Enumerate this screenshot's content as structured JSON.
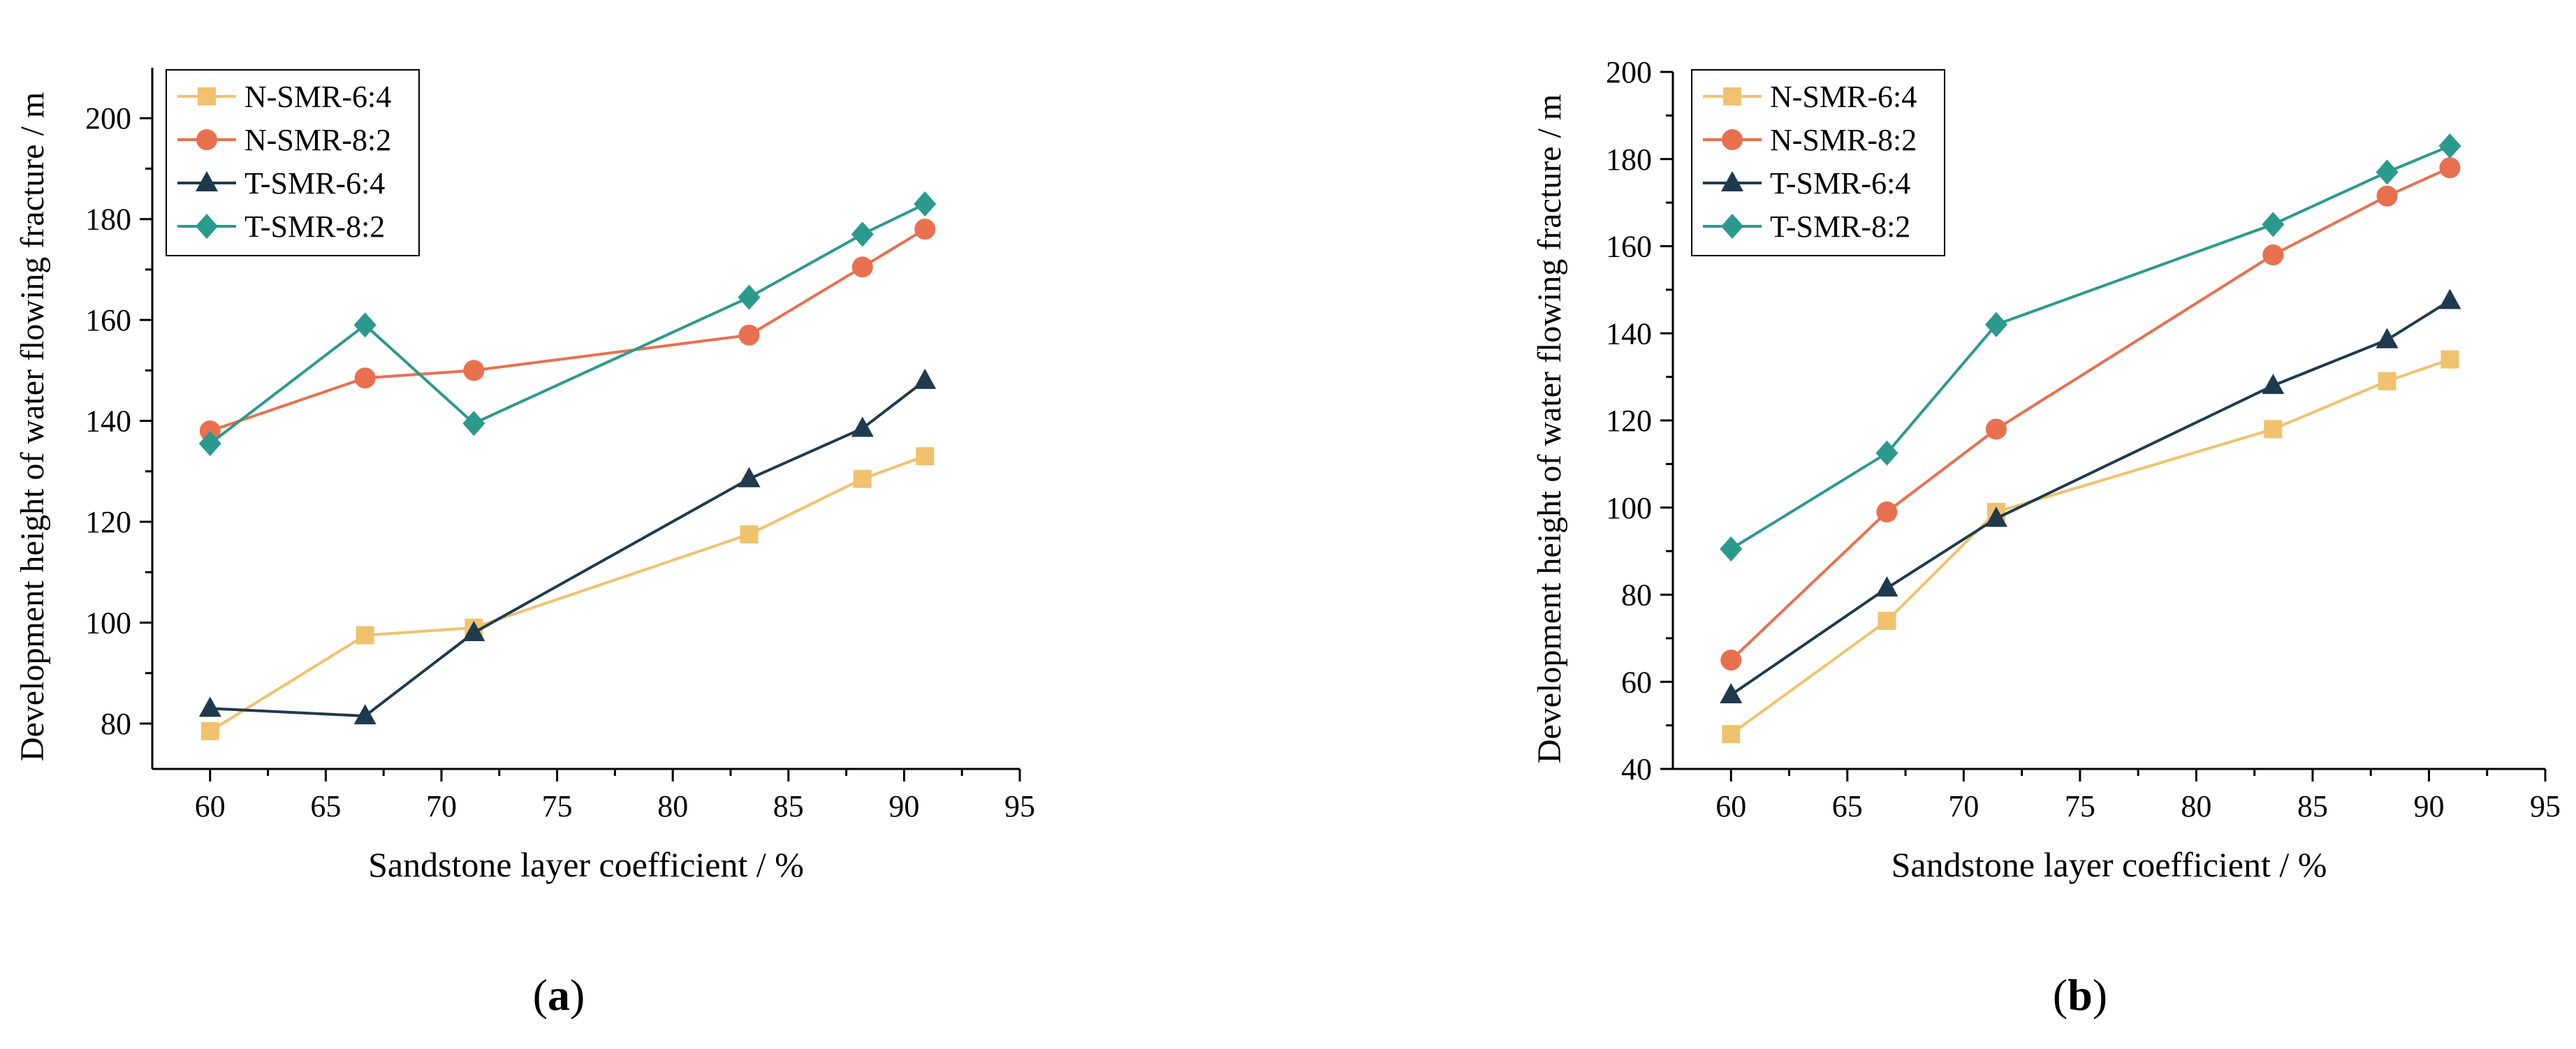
{
  "colors": {
    "N-SMR-6:4": "#F0C26E",
    "N-SMR-8:2": "#E8704E",
    "T-SMR-6:4": "#1F3A4D",
    "T-SMR-8:2": "#2A9A8C"
  },
  "chart_data": [
    {
      "type": "line",
      "panel_label": "a",
      "xlabel": "Sandstone layer coefficient / %",
      "ylabel": "Development height of water flowing fracture / m",
      "xlim": [
        57.5,
        95
      ],
      "ylim": [
        71,
        210
      ],
      "xticks": [
        60,
        65,
        70,
        75,
        80,
        85,
        90,
        95
      ],
      "yticks": [
        80,
        100,
        120,
        140,
        160,
        180,
        200
      ],
      "legend_position": "top-left",
      "series": [
        {
          "name": "N-SMR-6:4",
          "marker": "square",
          "x": [
            60,
            66.7,
            71.4,
            83.3,
            88.2,
            90.9
          ],
          "y": [
            78.5,
            97.5,
            99.0,
            117.5,
            128.5,
            133.0
          ]
        },
        {
          "name": "N-SMR-8:2",
          "marker": "circle",
          "x": [
            60,
            66.7,
            71.4,
            83.3,
            88.2,
            90.9
          ],
          "y": [
            138.0,
            148.5,
            150.0,
            157.0,
            170.5,
            178.0
          ]
        },
        {
          "name": "T-SMR-6:4",
          "marker": "triangle",
          "x": [
            60,
            66.7,
            71.4,
            83.3,
            88.2,
            90.9
          ],
          "y": [
            83.0,
            81.5,
            98.0,
            128.5,
            138.5,
            148.0
          ]
        },
        {
          "name": "T-SMR-8:2",
          "marker": "diamond",
          "x": [
            60,
            66.7,
            71.4,
            83.3,
            88.2,
            90.9
          ],
          "y": [
            135.5,
            159.0,
            139.5,
            164.5,
            177.0,
            183.0
          ]
        }
      ]
    },
    {
      "type": "line",
      "panel_label": "b",
      "xlabel": "Sandstone layer coefficient / %",
      "ylabel": "Development height of water flowing fracture / m",
      "xlim": [
        57.5,
        95
      ],
      "ylim": [
        40,
        200
      ],
      "xticks": [
        60,
        65,
        70,
        75,
        80,
        85,
        90,
        95
      ],
      "yticks": [
        40,
        60,
        80,
        100,
        120,
        140,
        160,
        180,
        200
      ],
      "legend_position": "top-left",
      "series": [
        {
          "name": "N-SMR-6:4",
          "marker": "square",
          "x": [
            60,
            66.7,
            71.4,
            83.3,
            88.2,
            90.9
          ],
          "y": [
            48.0,
            74.0,
            99.0,
            118.0,
            129.0,
            134.0
          ]
        },
        {
          "name": "N-SMR-8:2",
          "marker": "circle",
          "x": [
            60,
            66.7,
            71.4,
            83.3,
            88.2,
            90.9
          ],
          "y": [
            65.0,
            99.0,
            118.0,
            158.0,
            171.5,
            178.0
          ]
        },
        {
          "name": "T-SMR-6:4",
          "marker": "triangle",
          "x": [
            60,
            66.7,
            71.4,
            83.3,
            88.2,
            90.9
          ],
          "y": [
            57.0,
            81.5,
            97.5,
            128.0,
            138.5,
            147.5
          ]
        },
        {
          "name": "T-SMR-8:2",
          "marker": "diamond",
          "x": [
            60,
            66.7,
            71.4,
            83.3,
            88.2,
            90.9
          ],
          "y": [
            90.5,
            112.5,
            142.0,
            165.0,
            177.0,
            183.0
          ]
        }
      ]
    }
  ]
}
